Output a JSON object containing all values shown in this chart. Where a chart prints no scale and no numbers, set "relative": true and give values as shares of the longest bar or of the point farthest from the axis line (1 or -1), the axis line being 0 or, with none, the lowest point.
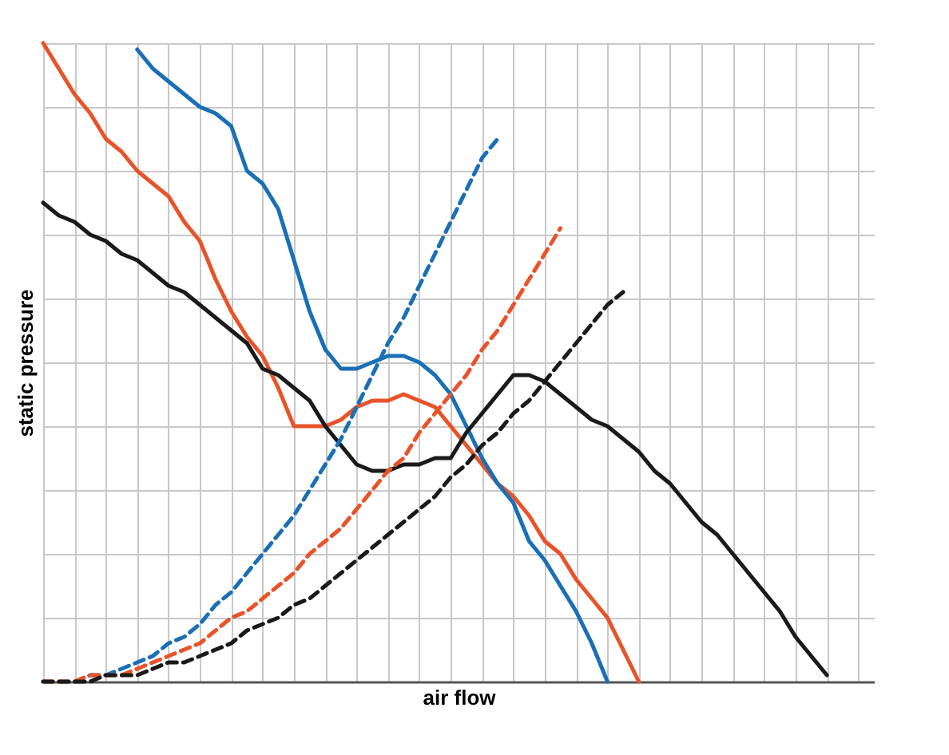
{
  "chart_data": {
    "type": "line",
    "xlabel": "air flow",
    "ylabel": "static pressure",
    "relative": true,
    "grid": true,
    "tick_labels": false,
    "categories": [
      null,
      null,
      null,
      null,
      null,
      null,
      null,
      null,
      null,
      null,
      null,
      null,
      null,
      null,
      null,
      null,
      null,
      null,
      null,
      null,
      null,
      null,
      null,
      null,
      null,
      null,
      null,
      null,
      null,
      null,
      null,
      null,
      null,
      null,
      null,
      null,
      null,
      null,
      null,
      null,
      null,
      null,
      null,
      null,
      null,
      null,
      null,
      null,
      null,
      null,
      null,
      null,
      null,
      null
    ],
    "series": [
      {
        "color": "#e8532a",
        "line_style": "solid",
        "values": [
          1.0,
          0.96,
          0.92,
          0.89,
          0.85,
          0.83,
          0.8,
          0.78,
          0.76,
          0.72,
          0.69,
          0.63,
          0.58,
          0.54,
          0.51,
          0.46,
          0.4,
          0.4,
          0.4,
          0.41,
          0.43,
          0.44,
          0.44,
          0.45,
          0.44,
          0.43,
          0.4,
          0.37,
          0.34,
          0.31,
          0.29,
          0.26,
          0.22,
          0.2,
          0.16,
          0.13,
          0.1,
          0.05,
          0,
          null,
          null,
          null,
          null,
          null,
          null,
          null,
          null,
          null,
          null,
          null,
          null,
          null,
          null,
          null
        ]
      },
      {
        "color": "#1a6fb5",
        "line_style": "solid",
        "values": [
          null,
          null,
          null,
          null,
          null,
          null,
          0.99,
          0.96,
          0.94,
          0.92,
          0.9,
          0.89,
          0.87,
          0.8,
          0.78,
          0.74,
          0.66,
          0.58,
          0.52,
          0.49,
          0.49,
          0.5,
          0.51,
          0.51,
          0.5,
          0.48,
          0.45,
          0.4,
          0.35,
          0.31,
          0.28,
          0.22,
          0.19,
          0.15,
          0.11,
          0.06,
          0,
          null,
          null,
          null,
          null,
          null,
          null,
          null,
          null,
          null,
          null,
          null,
          null,
          null,
          null,
          null,
          null,
          null
        ]
      },
      {
        "color": "#1a1a1a",
        "line_style": "solid",
        "values": [
          0.75,
          0.73,
          0.72,
          0.7,
          0.69,
          0.67,
          0.66,
          0.64,
          0.62,
          0.61,
          0.59,
          0.57,
          0.55,
          0.53,
          0.49,
          0.48,
          0.46,
          0.44,
          0.4,
          0.37,
          0.34,
          0.33,
          0.33,
          0.34,
          0.34,
          0.35,
          0.35,
          0.39,
          0.42,
          0.45,
          0.48,
          0.48,
          0.47,
          0.45,
          0.43,
          0.41,
          0.4,
          0.38,
          0.36,
          0.33,
          0.31,
          0.28,
          0.25,
          0.23,
          0.2,
          0.17,
          0.14,
          0.11,
          0.07,
          0.04,
          0.01,
          null,
          null,
          null
        ]
      },
      {
        "color": "#1a6fb5",
        "line_style": "dashed",
        "values": [
          null,
          null,
          0,
          0.01,
          0.01,
          0.02,
          0.03,
          0.04,
          0.06,
          0.07,
          0.09,
          0.12,
          0.14,
          0.17,
          0.2,
          0.23,
          0.26,
          0.3,
          0.34,
          0.38,
          0.43,
          0.48,
          0.53,
          0.57,
          0.62,
          0.67,
          0.72,
          0.77,
          0.82,
          0.85,
          null,
          null,
          null,
          null,
          null,
          null,
          null,
          null,
          null,
          null,
          null,
          null,
          null,
          null,
          null,
          null,
          null,
          null,
          null,
          null,
          null,
          null,
          null,
          null
        ]
      },
      {
        "color": "#e8532a",
        "line_style": "dashed",
        "values": [
          0,
          0,
          0,
          0.01,
          0.01,
          0.01,
          0.02,
          0.03,
          0.04,
          0.05,
          0.06,
          0.08,
          0.1,
          0.11,
          0.13,
          0.15,
          0.17,
          0.2,
          0.22,
          0.24,
          0.27,
          0.3,
          0.33,
          0.35,
          0.39,
          0.42,
          0.45,
          0.48,
          0.52,
          0.55,
          0.59,
          0.63,
          0.67,
          0.71,
          null,
          null,
          null,
          null,
          null,
          null,
          null,
          null,
          null,
          null,
          null,
          null,
          null,
          null,
          null,
          null,
          null,
          null,
          null,
          null
        ]
      },
      {
        "color": "#1a1a1a",
        "line_style": "dashed",
        "values": [
          0,
          0,
          0,
          0,
          0.01,
          0.01,
          0.01,
          0.02,
          0.03,
          0.03,
          0.04,
          0.05,
          0.06,
          0.08,
          0.09,
          0.1,
          0.12,
          0.13,
          0.15,
          0.17,
          0.19,
          0.21,
          0.23,
          0.25,
          0.27,
          0.29,
          0.32,
          0.34,
          0.37,
          0.39,
          0.42,
          0.44,
          0.47,
          0.5,
          0.53,
          0.56,
          0.59,
          0.61,
          null,
          null,
          null,
          null,
          null,
          null,
          null,
          null,
          null,
          null,
          null,
          null,
          null,
          null,
          null,
          null
        ]
      }
    ]
  }
}
